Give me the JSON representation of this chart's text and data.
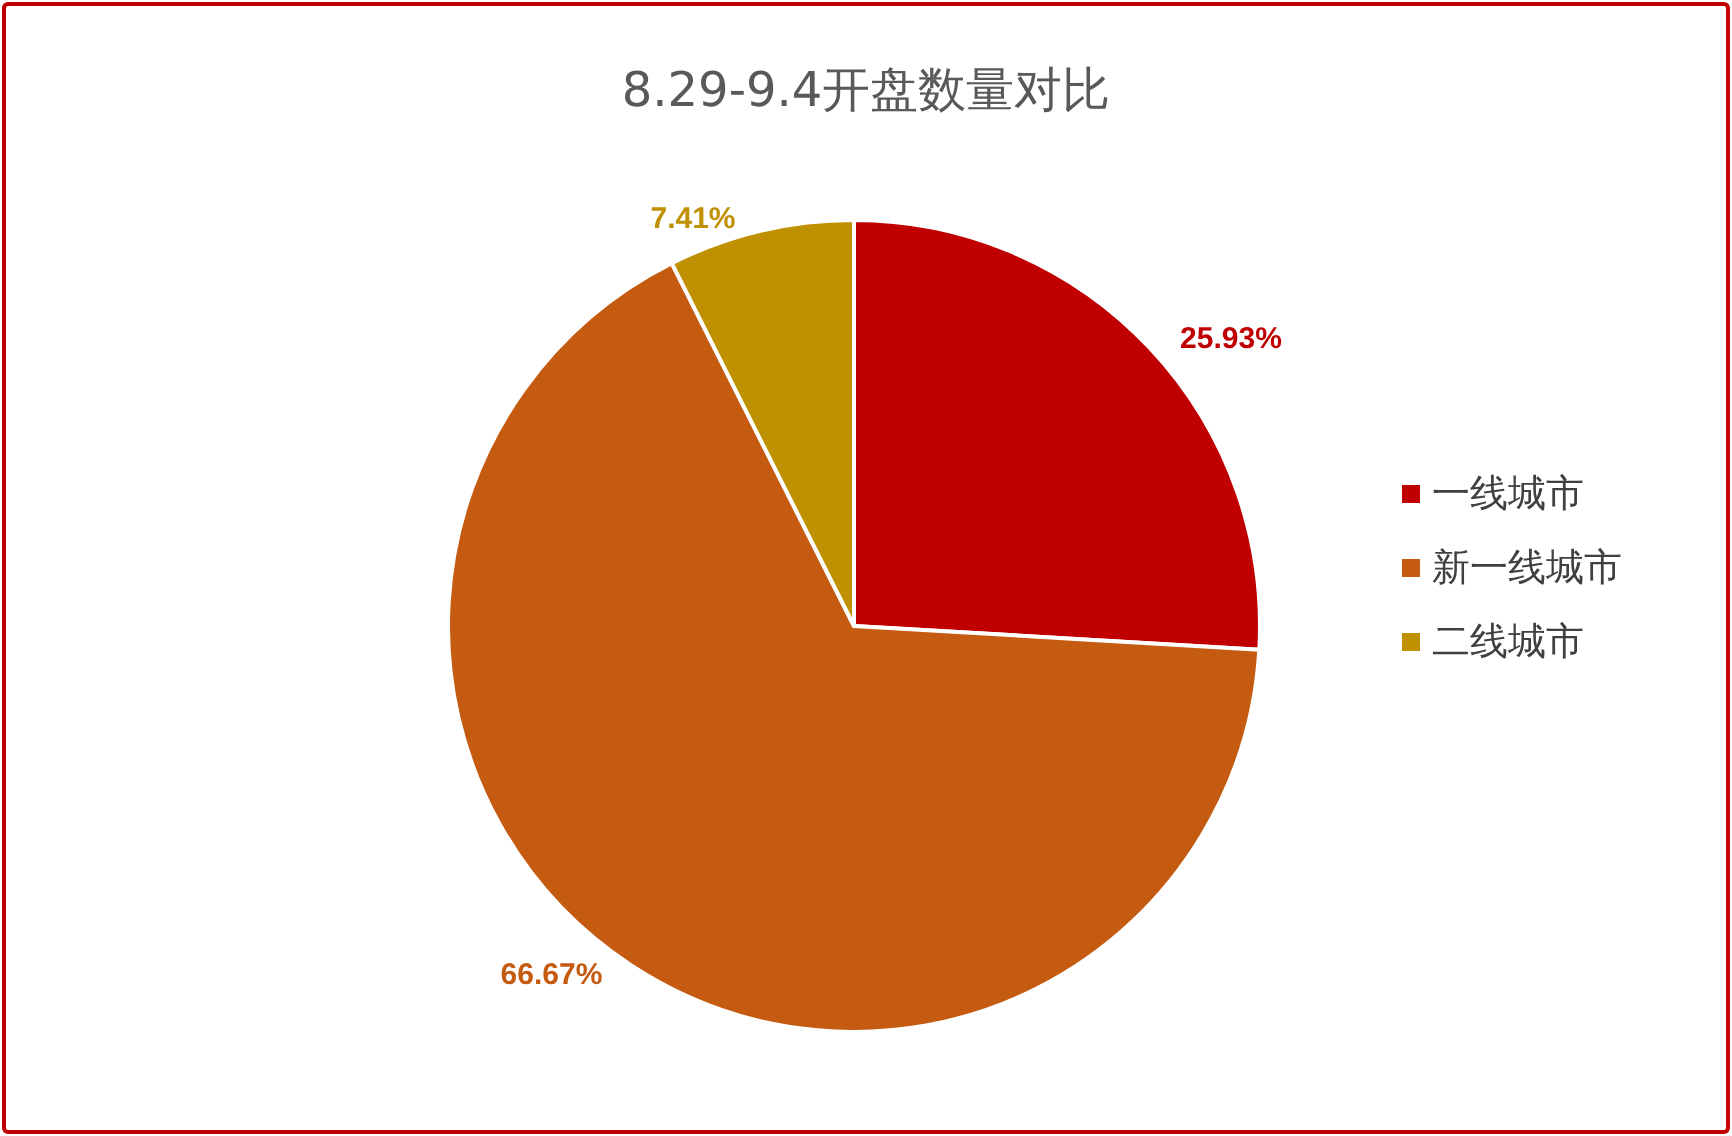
{
  "chart_data": {
    "type": "pie",
    "title": "8.29-9.4开盘数量对比",
    "categories": [
      "一线城市",
      "新一线城市",
      "二线城市"
    ],
    "values": [
      25.93,
      66.67,
      7.41
    ],
    "colors": [
      "#c00000",
      "#c55a11",
      "#bf9000"
    ],
    "value_labels": [
      "25.93%",
      "66.67%",
      "7.41%"
    ],
    "legend": "right"
  }
}
